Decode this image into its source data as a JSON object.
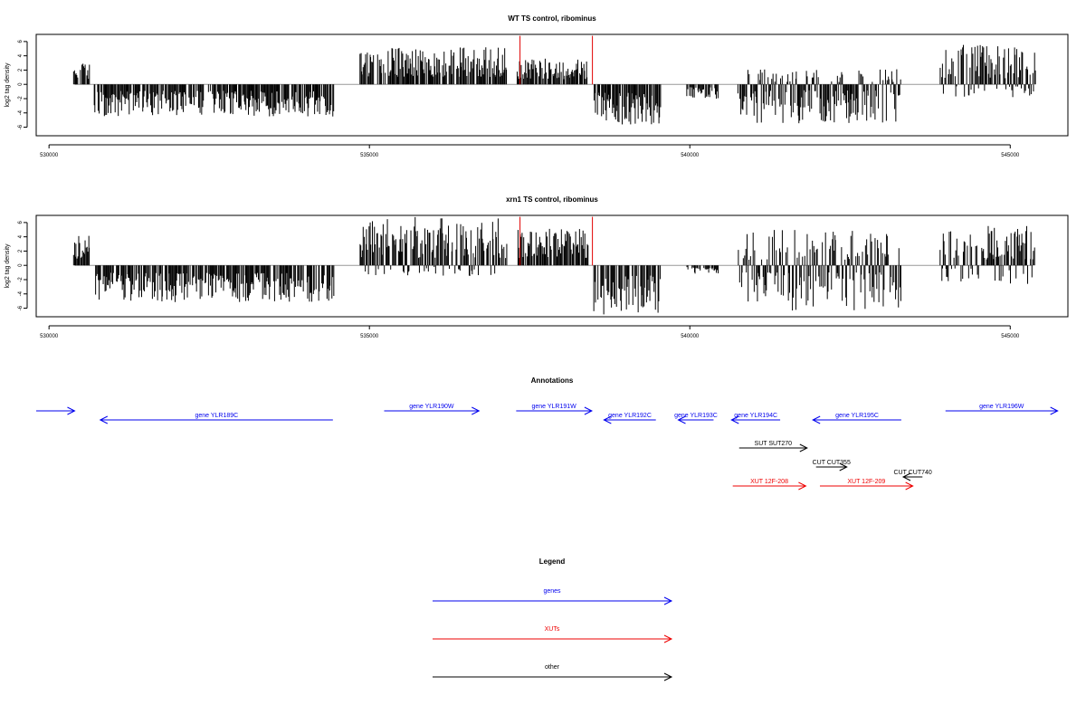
{
  "chart_data": [
    {
      "type": "bar",
      "title": "WT TS control, ribominus",
      "ylabel": "log2 tag density",
      "xlabel": "",
      "xlim": [
        529800,
        545900
      ],
      "ylim": [
        -7.2,
        7.0
      ],
      "xticks": [
        530000,
        535000,
        540000,
        545000
      ],
      "yticks": [
        -6,
        -4,
        -2,
        0,
        2,
        4,
        6
      ],
      "grid": false,
      "baseline": 0,
      "series": [
        {
          "values": [
            {
              "x_start": 530380,
              "x_end": 530640,
              "y_range": [
                0,
                3.0
              ]
            },
            {
              "x_start": 530700,
              "x_end": 534450,
              "y_range": [
                -4.5,
                0
              ]
            },
            {
              "x_start": 534850,
              "x_end": 537150,
              "y_range": [
                0,
                5.2
              ]
            },
            {
              "x_start": 537300,
              "x_end": 538420,
              "y_range": [
                0,
                3.6
              ]
            },
            {
              "x_start": 538500,
              "x_end": 539550,
              "y_range": [
                -5.8,
                0
              ]
            },
            {
              "x_start": 539950,
              "x_end": 540450,
              "y_range": [
                -2.0,
                0
              ]
            },
            {
              "x_start": 540750,
              "x_end": 543300,
              "y_range": [
                -5.5,
                2.2
              ]
            },
            {
              "x_start": 543900,
              "x_end": 545400,
              "y_range": [
                -1.8,
                5.6
              ]
            }
          ]
        },
        {
          "color": "#e00000",
          "values": [
            {
              "x": 537350,
              "y": 6.8
            },
            {
              "x": 538480,
              "y": 6.8
            }
          ]
        }
      ]
    },
    {
      "type": "bar",
      "title": "xrn1 TS control, ribominus",
      "ylabel": "log2 tag density",
      "xlabel": "",
      "xlim": [
        529800,
        545900
      ],
      "ylim": [
        -7.2,
        7.0
      ],
      "xticks": [
        530000,
        535000,
        540000,
        545000
      ],
      "yticks": [
        -6,
        -4,
        -2,
        0,
        2,
        4,
        6
      ],
      "grid": false,
      "baseline": 0,
      "series": [
        {
          "values": [
            {
              "x_start": 530380,
              "x_end": 530640,
              "y_range": [
                0,
                4.2
              ]
            },
            {
              "x_start": 530700,
              "x_end": 534450,
              "y_range": [
                -5.2,
                0
              ]
            },
            {
              "x_start": 534850,
              "x_end": 537150,
              "y_range": [
                -1.5,
                6.8
              ]
            },
            {
              "x_start": 537300,
              "x_end": 538420,
              "y_range": [
                0,
                5.2
              ]
            },
            {
              "x_start": 538500,
              "x_end": 539550,
              "y_range": [
                -7.0,
                0
              ]
            },
            {
              "x_start": 539950,
              "x_end": 540450,
              "y_range": [
                -1.2,
                0
              ]
            },
            {
              "x_start": 540750,
              "x_end": 543300,
              "y_range": [
                -6.5,
                5.0
              ]
            },
            {
              "x_start": 543900,
              "x_end": 545400,
              "y_range": [
                -2.8,
                5.6
              ]
            }
          ]
        },
        {
          "color": "#e00000",
          "values": [
            {
              "x": 537350,
              "y": 6.8
            },
            {
              "x": 538480,
              "y": 6.8
            }
          ]
        }
      ]
    }
  ],
  "annotations": {
    "title": "Annotations",
    "features": [
      {
        "label": "",
        "type": "gene",
        "start": 529800,
        "end": 530400,
        "strand": "+",
        "row": 0
      },
      {
        "label": "gene YLR189C",
        "type": "gene",
        "start": 530800,
        "end": 534430,
        "strand": "-",
        "row": 1
      },
      {
        "label": "gene YLR190W",
        "type": "gene",
        "start": 535230,
        "end": 536710,
        "strand": "+",
        "row": 0
      },
      {
        "label": "gene YLR191W",
        "type": "gene",
        "start": 537290,
        "end": 538470,
        "strand": "+",
        "row": 0
      },
      {
        "label": "gene YLR192C",
        "type": "gene",
        "start": 538660,
        "end": 539470,
        "strand": "-",
        "row": 1
      },
      {
        "label": "gene YLR193C",
        "type": "gene",
        "start": 539820,
        "end": 540370,
        "strand": "-",
        "row": 1
      },
      {
        "label": "gene YLR194C",
        "type": "gene",
        "start": 540650,
        "end": 541410,
        "strand": "-",
        "row": 1
      },
      {
        "label": "gene YLR195C",
        "type": "gene",
        "start": 541920,
        "end": 543300,
        "strand": "-",
        "row": 1
      },
      {
        "label": "gene YLR196W",
        "type": "gene",
        "start": 543990,
        "end": 545740,
        "strand": "+",
        "row": 0
      },
      {
        "label": "SUT SUT270",
        "type": "other",
        "start": 540770,
        "end": 541830,
        "strand": "+",
        "row": 2
      },
      {
        "label": "CUT CUT355",
        "type": "other",
        "start": 541970,
        "end": 542450,
        "strand": "+",
        "row": 3
      },
      {
        "label": "CUT CUT740",
        "type": "other",
        "start": 543330,
        "end": 543630,
        "strand": "-",
        "row": 4
      },
      {
        "label": "XUT 12F-208",
        "type": "xut",
        "start": 540670,
        "end": 541810,
        "strand": "+",
        "row": 5
      },
      {
        "label": "XUT 12F-209",
        "type": "xut",
        "start": 542030,
        "end": 543480,
        "strand": "+",
        "row": 5
      }
    ]
  },
  "legend": {
    "title": "Legend",
    "items": [
      {
        "label": "genes",
        "color": "#0000ee"
      },
      {
        "label": "XUTs",
        "color": "#ee0000"
      },
      {
        "label": "other",
        "color": "#000000"
      }
    ]
  },
  "colors": {
    "gene": "#0000ee",
    "xut": "#ee0000",
    "other": "#000000"
  }
}
